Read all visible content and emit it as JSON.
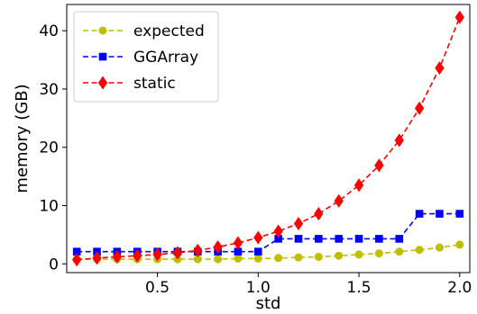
{
  "chart_data": {
    "type": "line",
    "xlabel": "std",
    "ylabel": "memory (GB)",
    "xlim": [
      0.05,
      2.05
    ],
    "ylim": [
      -1.5,
      44.5
    ],
    "x_ticks": [
      0.5,
      1.0,
      1.5,
      2.0
    ],
    "x_tick_labels": [
      "0.5",
      "1.0",
      "1.5",
      "2.0"
    ],
    "y_ticks": [
      0,
      10,
      20,
      30,
      40
    ],
    "y_tick_labels": [
      "0",
      "10",
      "20",
      "30",
      "40"
    ],
    "grid": false,
    "legend_position": "top-left",
    "x": [
      0.1,
      0.2,
      0.3,
      0.4,
      0.5,
      0.6,
      0.7,
      0.8,
      0.9,
      1.0,
      1.1,
      1.2,
      1.3,
      1.4,
      1.5,
      1.6,
      1.7,
      1.8,
      1.9,
      2.0
    ],
    "series": [
      {
        "name": "expected",
        "color": "#bfbf00",
        "marker": "circle",
        "values": [
          0.8,
          0.8,
          0.8,
          0.8,
          0.8,
          0.8,
          0.8,
          0.8,
          0.9,
          0.9,
          1.0,
          1.1,
          1.2,
          1.4,
          1.6,
          1.8,
          2.1,
          2.4,
          2.8,
          3.3
        ]
      },
      {
        "name": "GGArray",
        "color": "#0000ff",
        "marker": "square",
        "values": [
          2.1,
          2.1,
          2.1,
          2.1,
          2.1,
          2.1,
          2.1,
          2.1,
          2.1,
          2.1,
          4.3,
          4.3,
          4.3,
          4.3,
          4.3,
          4.3,
          4.3,
          8.6,
          8.6,
          8.6
        ]
      },
      {
        "name": "static",
        "color": "#ff0000",
        "marker": "diamond",
        "values": [
          0.7,
          1.0,
          1.2,
          1.4,
          1.6,
          1.9,
          2.3,
          2.9,
          3.6,
          4.5,
          5.6,
          6.9,
          8.6,
          10.8,
          13.5,
          16.9,
          21.2,
          26.7,
          33.6,
          42.3
        ]
      }
    ]
  }
}
